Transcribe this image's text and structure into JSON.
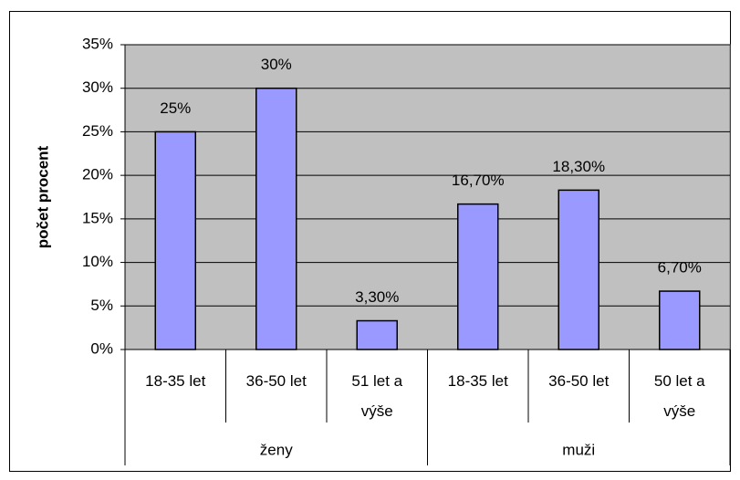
{
  "chart_data": {
    "type": "bar",
    "ylabel": "počet procent",
    "color": "#9999ff",
    "ylim": [
      0,
      35
    ],
    "yticks": [
      {
        "value": 0,
        "label": "0%"
      },
      {
        "value": 5,
        "label": "5%"
      },
      {
        "value": 10,
        "label": "10%"
      },
      {
        "value": 15,
        "label": "15%"
      },
      {
        "value": 20,
        "label": "20%"
      },
      {
        "value": 25,
        "label": "25%"
      },
      {
        "value": 30,
        "label": "30%"
      },
      {
        "value": 35,
        "label": "35%"
      }
    ],
    "grid": true,
    "groups": [
      {
        "name": "ženy",
        "categories": [
          "18-35 let",
          "36-50 let",
          "51 let a výše"
        ],
        "values": [
          25,
          30,
          3.3
        ],
        "value_labels": [
          "25%",
          "30%",
          "3,30%"
        ]
      },
      {
        "name": "muži",
        "categories": [
          "18-35 let",
          "36-50 let",
          "50 let a výše"
        ],
        "values": [
          16.7,
          18.3,
          6.7
        ],
        "value_labels": [
          "16,70%",
          "18,30%",
          "6,70%"
        ]
      }
    ]
  }
}
